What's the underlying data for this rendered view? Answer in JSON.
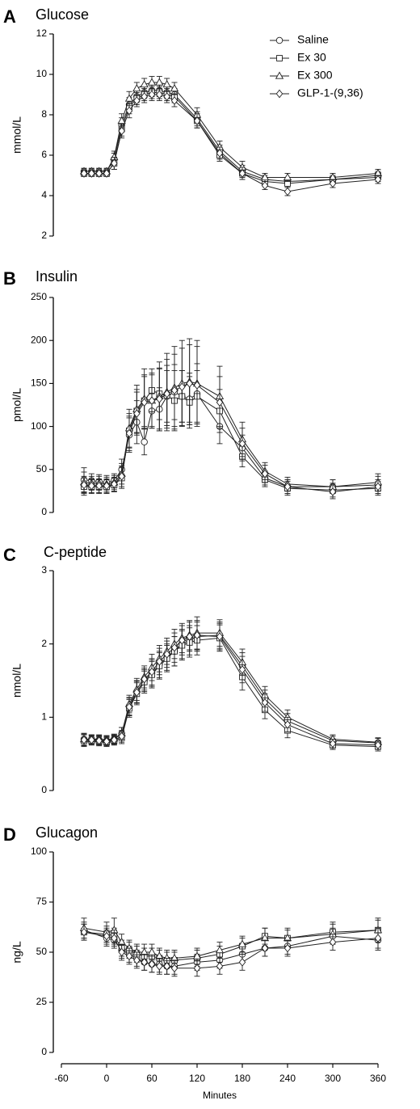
{
  "chart_data": [
    {
      "type": "line",
      "letter": "A",
      "title": "Glucose",
      "ylabel": "mmol/L",
      "xlabel": "",
      "ylim": [
        2,
        12
      ],
      "yticks": [
        2,
        4,
        6,
        8,
        10,
        12
      ],
      "legend": {
        "placement": "top-right",
        "entries": [
          {
            "name": "Saline",
            "marker": "circle"
          },
          {
            "name": "Ex 30",
            "marker": "square"
          },
          {
            "name": "Ex 300",
            "marker": "triangle"
          },
          {
            "name": "GLP-1-(9,36)",
            "marker": "diamond"
          }
        ]
      },
      "x": [
        -30,
        -20,
        -10,
        0,
        10,
        20,
        30,
        40,
        50,
        60,
        70,
        80,
        90,
        120,
        150,
        180,
        210,
        240,
        300,
        360
      ],
      "series": [
        {
          "name": "Saline",
          "marker": "circle",
          "values": [
            5.2,
            5.2,
            5.2,
            5.2,
            5.8,
            7.5,
            8.5,
            8.9,
            9.1,
            9.2,
            9.2,
            9.1,
            9.0,
            7.8,
            6.2,
            5.2,
            4.8,
            4.7,
            4.8,
            4.9
          ],
          "err": [
            0.15,
            0.15,
            0.15,
            0.15,
            0.3,
            0.35,
            0.35,
            0.3,
            0.3,
            0.3,
            0.3,
            0.3,
            0.3,
            0.35,
            0.3,
            0.3,
            0.2,
            0.2,
            0.2,
            0.2
          ]
        },
        {
          "name": "Ex 30",
          "marker": "square",
          "values": [
            5.1,
            5.1,
            5.1,
            5.1,
            5.6,
            7.3,
            8.4,
            8.8,
            9.0,
            9.1,
            9.1,
            9.0,
            8.9,
            7.7,
            6.0,
            5.1,
            4.7,
            4.6,
            4.8,
            5.0
          ],
          "err": [
            0.15,
            0.15,
            0.15,
            0.15,
            0.3,
            0.35,
            0.35,
            0.3,
            0.3,
            0.3,
            0.3,
            0.3,
            0.3,
            0.35,
            0.3,
            0.3,
            0.2,
            0.2,
            0.2,
            0.2
          ]
        },
        {
          "name": "Ex 300",
          "marker": "triangle",
          "values": [
            5.2,
            5.2,
            5.2,
            5.2,
            5.9,
            7.7,
            8.8,
            9.3,
            9.5,
            9.6,
            9.6,
            9.5,
            9.3,
            8.0,
            6.4,
            5.4,
            4.9,
            4.9,
            4.9,
            5.1
          ],
          "err": [
            0.15,
            0.15,
            0.15,
            0.15,
            0.3,
            0.35,
            0.35,
            0.3,
            0.3,
            0.3,
            0.3,
            0.3,
            0.3,
            0.35,
            0.3,
            0.3,
            0.2,
            0.2,
            0.2,
            0.2
          ]
        },
        {
          "name": "GLP-1-(9,36)",
          "marker": "diamond",
          "values": [
            5.1,
            5.1,
            5.1,
            5.1,
            5.6,
            7.2,
            8.2,
            8.7,
            8.9,
            9.0,
            9.0,
            8.9,
            8.7,
            7.7,
            6.1,
            5.1,
            4.5,
            4.2,
            4.6,
            4.8
          ],
          "err": [
            0.15,
            0.15,
            0.15,
            0.15,
            0.3,
            0.35,
            0.35,
            0.3,
            0.3,
            0.3,
            0.3,
            0.3,
            0.3,
            0.35,
            0.3,
            0.3,
            0.2,
            0.2,
            0.2,
            0.2
          ]
        }
      ]
    },
    {
      "type": "line",
      "letter": "B",
      "title": "Insulin",
      "ylabel": "pmol/L",
      "xlabel": "",
      "ylim": [
        0,
        250
      ],
      "yticks": [
        0,
        50,
        100,
        150,
        200,
        250
      ],
      "x": [
        -30,
        -20,
        -10,
        0,
        10,
        20,
        30,
        40,
        50,
        60,
        70,
        80,
        90,
        100,
        110,
        120,
        150,
        180,
        210,
        240,
        300,
        360
      ],
      "series": [
        {
          "name": "Saline",
          "marker": "circle",
          "values": [
            38,
            37,
            36,
            35,
            37,
            50,
            90,
            105,
            82,
            118,
            120,
            135,
            140,
            135,
            132,
            138,
            100,
            75,
            40,
            30,
            30,
            32
          ],
          "err": [
            14,
            8,
            8,
            8,
            8,
            12,
            20,
            25,
            15,
            20,
            25,
            30,
            32,
            30,
            30,
            35,
            20,
            15,
            8,
            8,
            8,
            10
          ]
        },
        {
          "name": "Ex 30",
          "marker": "square",
          "values": [
            30,
            30,
            30,
            30,
            32,
            40,
            95,
            118,
            130,
            142,
            138,
            136,
            130,
            135,
            128,
            135,
            118,
            65,
            38,
            28,
            26,
            28
          ],
          "err": [
            10,
            8,
            8,
            8,
            8,
            12,
            20,
            25,
            30,
            25,
            30,
            35,
            35,
            30,
            30,
            30,
            25,
            12,
            8,
            8,
            8,
            8
          ]
        },
        {
          "name": "Ex 300",
          "marker": "triangle",
          "values": [
            35,
            34,
            34,
            33,
            35,
            45,
            98,
            120,
            132,
            130,
            135,
            140,
            145,
            150,
            152,
            150,
            135,
            85,
            48,
            33,
            30,
            35
          ],
          "err": [
            12,
            8,
            8,
            8,
            8,
            12,
            22,
            28,
            35,
            32,
            40,
            45,
            48,
            50,
            50,
            50,
            35,
            20,
            10,
            8,
            8,
            10
          ]
        },
        {
          "name": "GLP-1-(9,36)",
          "marker": "diamond",
          "values": [
            32,
            31,
            31,
            31,
            33,
            42,
            92,
            115,
            128,
            130,
            132,
            138,
            142,
            146,
            150,
            148,
            128,
            80,
            45,
            30,
            24,
            30
          ],
          "err": [
            10,
            8,
            8,
            8,
            8,
            12,
            20,
            25,
            30,
            30,
            35,
            40,
            42,
            45,
            45,
            45,
            30,
            18,
            10,
            8,
            8,
            8
          ]
        }
      ]
    },
    {
      "type": "line",
      "letter": "C",
      "title": "C-peptide",
      "ylabel": "nmol/L",
      "xlabel": "",
      "ylim": [
        0,
        3
      ],
      "yticks": [
        0,
        1,
        2,
        3
      ],
      "x": [
        -30,
        -20,
        -10,
        0,
        10,
        20,
        30,
        40,
        50,
        60,
        70,
        80,
        90,
        100,
        110,
        120,
        150,
        180,
        210,
        240,
        300,
        360
      ],
      "series": [
        {
          "name": "Saline",
          "marker": "circle",
          "values": [
            0.7,
            0.7,
            0.69,
            0.68,
            0.7,
            0.78,
            1.15,
            1.35,
            1.5,
            1.6,
            1.72,
            1.82,
            1.9,
            2.0,
            2.05,
            2.1,
            2.12,
            1.7,
            1.25,
            0.95,
            0.68,
            0.65
          ],
          "err": [
            0.08,
            0.06,
            0.06,
            0.06,
            0.06,
            0.08,
            0.12,
            0.15,
            0.15,
            0.18,
            0.18,
            0.18,
            0.2,
            0.2,
            0.2,
            0.2,
            0.18,
            0.18,
            0.12,
            0.1,
            0.06,
            0.06
          ]
        },
        {
          "name": "Ex 30",
          "marker": "square",
          "values": [
            0.68,
            0.68,
            0.67,
            0.66,
            0.68,
            0.72,
            1.12,
            1.32,
            1.48,
            1.58,
            1.7,
            1.8,
            1.9,
            1.98,
            2.02,
            2.05,
            2.08,
            1.55,
            1.1,
            0.82,
            0.62,
            0.6
          ],
          "err": [
            0.08,
            0.06,
            0.06,
            0.06,
            0.06,
            0.08,
            0.12,
            0.15,
            0.15,
            0.18,
            0.18,
            0.18,
            0.2,
            0.2,
            0.2,
            0.2,
            0.18,
            0.18,
            0.12,
            0.1,
            0.06,
            0.06
          ]
        },
        {
          "name": "Ex 300",
          "marker": "triangle",
          "values": [
            0.7,
            0.7,
            0.7,
            0.69,
            0.71,
            0.78,
            1.18,
            1.38,
            1.55,
            1.68,
            1.8,
            1.9,
            2.0,
            2.08,
            2.12,
            2.15,
            2.15,
            1.75,
            1.3,
            1.0,
            0.7,
            0.66
          ],
          "err": [
            0.08,
            0.06,
            0.06,
            0.06,
            0.06,
            0.08,
            0.12,
            0.15,
            0.15,
            0.18,
            0.18,
            0.18,
            0.2,
            0.2,
            0.2,
            0.22,
            0.18,
            0.18,
            0.12,
            0.1,
            0.06,
            0.06
          ]
        },
        {
          "name": "GLP-1-(9,36)",
          "marker": "diamond",
          "values": [
            0.69,
            0.69,
            0.68,
            0.67,
            0.69,
            0.74,
            1.14,
            1.34,
            1.52,
            1.62,
            1.76,
            1.86,
            1.95,
            2.05,
            2.1,
            2.12,
            2.1,
            1.65,
            1.2,
            0.9,
            0.64,
            0.62
          ],
          "err": [
            0.08,
            0.06,
            0.06,
            0.06,
            0.06,
            0.08,
            0.12,
            0.15,
            0.15,
            0.18,
            0.18,
            0.18,
            0.2,
            0.2,
            0.2,
            0.2,
            0.18,
            0.18,
            0.12,
            0.1,
            0.06,
            0.06
          ]
        }
      ]
    },
    {
      "type": "line",
      "letter": "D",
      "title": "Glucagon",
      "ylabel": "ng/L",
      "xlabel": "Minutes",
      "ylim": [
        0,
        100
      ],
      "yticks": [
        0,
        25,
        50,
        75,
        100
      ],
      "xlim": [
        -60,
        360
      ],
      "xticks": [
        -60,
        0,
        60,
        120,
        180,
        240,
        300,
        360
      ],
      "x": [
        -30,
        0,
        10,
        20,
        30,
        40,
        50,
        60,
        70,
        80,
        90,
        120,
        150,
        180,
        210,
        240,
        300,
        360
      ],
      "series": [
        {
          "name": "Saline",
          "marker": "circle",
          "values": [
            61,
            57,
            56,
            51,
            49,
            47,
            45,
            44,
            44,
            43,
            43,
            45,
            46,
            49,
            52,
            53,
            58,
            56
          ],
          "err": [
            4,
            4,
            4,
            4,
            4,
            4,
            4,
            4,
            4,
            4,
            4,
            4,
            4,
            4,
            4,
            4,
            4,
            5
          ]
        },
        {
          "name": "Ex 30",
          "marker": "square",
          "values": [
            60,
            59,
            58,
            52,
            51,
            49,
            48,
            48,
            47,
            46,
            46,
            47,
            49,
            53,
            58,
            57,
            60,
            61
          ],
          "err": [
            4,
            4,
            4,
            4,
            4,
            4,
            4,
            4,
            4,
            4,
            4,
            4,
            4,
            4,
            4,
            4,
            5,
            6
          ]
        },
        {
          "name": "Ex 300",
          "marker": "triangle",
          "values": [
            62,
            60,
            61,
            55,
            52,
            50,
            50,
            50,
            48,
            47,
            47,
            48,
            51,
            54,
            57,
            57,
            59,
            61
          ],
          "err": [
            5,
            5,
            6,
            4,
            4,
            4,
            4,
            4,
            4,
            4,
            4,
            4,
            4,
            4,
            5,
            5,
            5,
            5
          ]
        },
        {
          "name": "GLP-1-(9,36)",
          "marker": "diamond",
          "values": [
            60,
            58,
            57,
            50,
            48,
            46,
            45,
            44,
            43,
            43,
            42,
            42,
            43,
            45,
            52,
            52,
            55,
            57
          ],
          "err": [
            4,
            4,
            4,
            4,
            4,
            4,
            4,
            4,
            4,
            4,
            4,
            4,
            4,
            4,
            4,
            4,
            4,
            5
          ]
        }
      ]
    }
  ]
}
